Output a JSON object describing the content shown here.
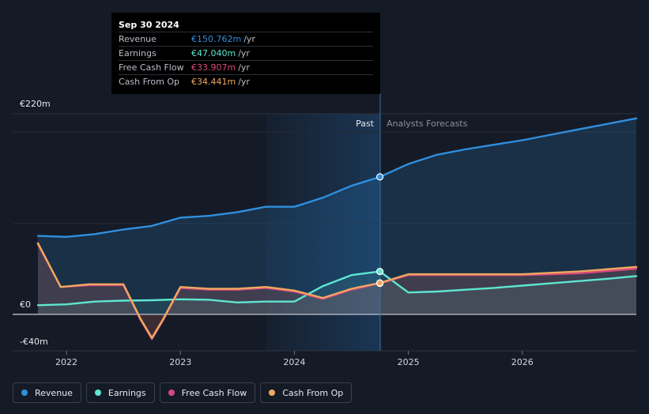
{
  "chart_data": {
    "type": "line",
    "title": "",
    "xlabel": "",
    "ylabel": "",
    "ylim": [
      -40,
      220
    ],
    "y_tick_labels": [
      "€220m",
      "€0",
      "-€40m"
    ],
    "x_tick_labels": [
      {
        "x": 2022.0,
        "label": "2022"
      },
      {
        "x": 2023.0,
        "label": "2023"
      },
      {
        "x": 2024.0,
        "label": "2024"
      },
      {
        "x": 2025.0,
        "label": "2025"
      },
      {
        "x": 2026.0,
        "label": "2026"
      }
    ],
    "divider_x": 2024.75,
    "past_label": "Past",
    "forecast_label": "Analysts Forecasts",
    "series": [
      {
        "key": "revenue",
        "name": "Revenue",
        "color": "#2f8fde",
        "fill": true,
        "points": [
          [
            2021.75,
            86
          ],
          [
            2022.0,
            85
          ],
          [
            2022.25,
            88
          ],
          [
            2022.5,
            93
          ],
          [
            2022.75,
            97
          ],
          [
            2023.0,
            106
          ],
          [
            2023.25,
            108
          ],
          [
            2023.5,
            112
          ],
          [
            2023.75,
            118
          ],
          [
            2024.0,
            118
          ],
          [
            2024.25,
            128
          ],
          [
            2024.5,
            141
          ],
          [
            2024.75,
            150.762
          ],
          [
            2025.0,
            165
          ],
          [
            2025.25,
            175
          ],
          [
            2025.5,
            181
          ],
          [
            2025.75,
            186
          ],
          [
            2026.0,
            191
          ],
          [
            2026.25,
            197
          ],
          [
            2026.5,
            203
          ],
          [
            2026.75,
            209
          ],
          [
            2027.0,
            215
          ]
        ]
      },
      {
        "key": "earnings",
        "name": "Earnings",
        "color": "#5ee6d0",
        "fill": false,
        "points": [
          [
            2021.75,
            10
          ],
          [
            2022.0,
            11
          ],
          [
            2022.25,
            14
          ],
          [
            2022.5,
            15
          ],
          [
            2022.75,
            15.5
          ],
          [
            2023.0,
            16.5
          ],
          [
            2023.25,
            16
          ],
          [
            2023.5,
            13
          ],
          [
            2023.75,
            14
          ],
          [
            2024.0,
            14
          ],
          [
            2024.25,
            31
          ],
          [
            2024.5,
            43
          ],
          [
            2024.75,
            47.04
          ],
          [
            2025.0,
            24
          ],
          [
            2025.25,
            25
          ],
          [
            2025.5,
            27
          ],
          [
            2025.75,
            29
          ],
          [
            2026.0,
            31.5
          ],
          [
            2026.25,
            34
          ],
          [
            2026.5,
            36.5
          ],
          [
            2026.75,
            39
          ],
          [
            2027.0,
            42
          ]
        ]
      },
      {
        "key": "fcf",
        "name": "Free Cash Flow",
        "color": "#d9487f",
        "fill": false,
        "points": [
          [
            2021.75,
            77
          ],
          [
            2021.95,
            30
          ],
          [
            2022.2,
            32
          ],
          [
            2022.5,
            32
          ],
          [
            2022.65,
            -6
          ],
          [
            2022.75,
            -27
          ],
          [
            2022.85,
            -6
          ],
          [
            2023.0,
            29
          ],
          [
            2023.25,
            27
          ],
          [
            2023.5,
            27
          ],
          [
            2023.75,
            29
          ],
          [
            2024.0,
            25
          ],
          [
            2024.25,
            17
          ],
          [
            2024.5,
            27
          ],
          [
            2024.75,
            34
          ],
          [
            2025.0,
            43
          ],
          [
            2025.5,
            43
          ],
          [
            2026.0,
            43
          ],
          [
            2026.5,
            45
          ],
          [
            2027.0,
            50
          ]
        ]
      },
      {
        "key": "cfo",
        "name": "Cash From Op",
        "color": "#f0a860",
        "fill": false,
        "points": [
          [
            2021.75,
            78
          ],
          [
            2021.95,
            30
          ],
          [
            2022.2,
            33
          ],
          [
            2022.5,
            33
          ],
          [
            2022.65,
            -5
          ],
          [
            2022.75,
            -26
          ],
          [
            2022.85,
            -5
          ],
          [
            2023.0,
            30
          ],
          [
            2023.25,
            28
          ],
          [
            2023.5,
            28
          ],
          [
            2023.75,
            30
          ],
          [
            2024.0,
            26
          ],
          [
            2024.25,
            18
          ],
          [
            2024.5,
            28
          ],
          [
            2024.75,
            34.441
          ],
          [
            2025.0,
            44
          ],
          [
            2025.5,
            44
          ],
          [
            2026.0,
            44
          ],
          [
            2026.5,
            47
          ],
          [
            2027.0,
            52
          ]
        ]
      }
    ]
  },
  "tooltip": {
    "date": "Sep 30 2024",
    "rows": [
      {
        "label": "Revenue",
        "value": "€150.762m",
        "unit": "/yr",
        "color": "#2f8fde"
      },
      {
        "label": "Earnings",
        "value": "€47.040m",
        "unit": "/yr",
        "color": "#5ee6d0"
      },
      {
        "label": "Free Cash Flow",
        "value": "€33.907m",
        "unit": "/yr",
        "color": "#d9487f"
      },
      {
        "label": "Cash From Op",
        "value": "€34.441m",
        "unit": "/yr",
        "color": "#f0a860"
      }
    ]
  },
  "legend": [
    {
      "label": "Revenue",
      "color": "#2f8fde"
    },
    {
      "label": "Earnings",
      "color": "#5ee6d0"
    },
    {
      "label": "Free Cash Flow",
      "color": "#d9487f"
    },
    {
      "label": "Cash From Op",
      "color": "#f0a860"
    }
  ]
}
